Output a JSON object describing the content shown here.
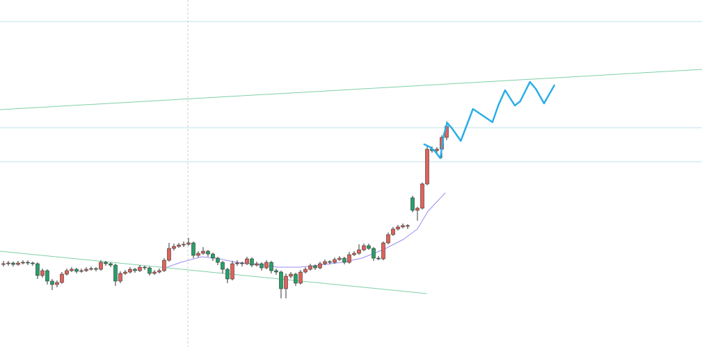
{
  "chart_data": {
    "type": "candlestick",
    "xlim": [
      -0.71,
      143.43
    ],
    "ylim": [
      0,
      500
    ],
    "up_color": "#e0625b",
    "down_color": "#26a069",
    "x": [
      0,
      1,
      2,
      3,
      4,
      5,
      6,
      7,
      8,
      9,
      10,
      11,
      12,
      13,
      14,
      15,
      16,
      17,
      18,
      19,
      20,
      21,
      22,
      23,
      24,
      25,
      26,
      27,
      28,
      29,
      30,
      31,
      32,
      33,
      34,
      35,
      36,
      37,
      38,
      39,
      40,
      41,
      42,
      43,
      44,
      45,
      46,
      47,
      48,
      49,
      50,
      51,
      52,
      53,
      54,
      55,
      56,
      57,
      58,
      59,
      60,
      61,
      62,
      63,
      64,
      65,
      66,
      67,
      68,
      69,
      70,
      71,
      72,
      73,
      74,
      75,
      76,
      77,
      78,
      79,
      80,
      81,
      82,
      83,
      84,
      85,
      86,
      87,
      88,
      89,
      90,
      91
    ],
    "open": [
      119,
      120,
      121,
      119,
      121,
      122,
      121,
      120,
      103,
      110,
      95,
      90,
      93,
      105,
      110,
      112,
      109,
      110,
      112,
      113,
      112,
      122,
      120,
      118,
      95,
      106,
      108,
      112,
      110,
      115,
      114,
      106,
      108,
      110,
      125,
      142,
      145,
      147,
      148,
      150,
      132,
      135,
      138,
      134,
      128,
      122,
      112,
      98,
      120,
      121,
      120,
      127,
      118,
      120,
      114,
      122,
      110,
      108,
      84,
      102,
      105,
      92,
      108,
      112,
      117,
      114,
      120,
      123,
      122,
      126,
      128,
      122,
      133,
      135,
      140,
      146,
      142,
      128,
      127,
      150,
      162,
      170,
      173,
      175,
      215,
      197,
      200,
      235,
      285,
      283,
      285,
      302
    ],
    "high": [
      124,
      124,
      123,
      124,
      125,
      125,
      123,
      122,
      113,
      112,
      98,
      96,
      108,
      113,
      115,
      114,
      113,
      115,
      116,
      115,
      125,
      124,
      122,
      120,
      109,
      111,
      115,
      114,
      118,
      117,
      116,
      111,
      113,
      128,
      150,
      149,
      150,
      152,
      157,
      152,
      138,
      144,
      140,
      136,
      130,
      124,
      114,
      124,
      125,
      123,
      130,
      129,
      123,
      122,
      125,
      124,
      113,
      110,
      106,
      108,
      107,
      111,
      115,
      120,
      119,
      123,
      126,
      125,
      129,
      131,
      130,
      137,
      138,
      148,
      149,
      149,
      144,
      131,
      152,
      165,
      173,
      176,
      178,
      177,
      218,
      202,
      237,
      290,
      289,
      288,
      305,
      325
    ],
    "low": [
      116,
      117,
      116,
      117,
      119,
      118,
      117,
      98,
      100,
      90,
      82,
      86,
      91,
      103,
      108,
      106,
      107,
      108,
      110,
      109,
      110,
      117,
      115,
      88,
      92,
      104,
      106,
      107,
      108,
      111,
      103,
      104,
      106,
      108,
      123,
      139,
      143,
      144,
      146,
      128,
      129,
      133,
      130,
      124,
      118,
      106,
      92,
      96,
      117,
      116,
      118,
      115,
      116,
      110,
      112,
      106,
      104,
      70,
      70,
      99,
      88,
      90,
      106,
      110,
      111,
      112,
      118,
      119,
      120,
      124,
      119,
      120,
      131,
      133,
      138,
      140,
      124,
      125,
      125,
      148,
      160,
      168,
      171,
      170,
      194,
      182,
      198,
      233,
      280,
      278,
      272,
      298
    ],
    "close": [
      120,
      121,
      119,
      121,
      122,
      121,
      120,
      103,
      110,
      95,
      90,
      93,
      105,
      110,
      112,
      109,
      110,
      112,
      113,
      112,
      122,
      120,
      118,
      95,
      106,
      108,
      112,
      110,
      115,
      114,
      106,
      108,
      110,
      125,
      142,
      145,
      147,
      148,
      150,
      132,
      135,
      138,
      134,
      128,
      122,
      112,
      98,
      120,
      121,
      120,
      127,
      118,
      120,
      114,
      122,
      110,
      108,
      84,
      102,
      105,
      92,
      108,
      112,
      117,
      114,
      120,
      123,
      122,
      126,
      128,
      122,
      133,
      135,
      140,
      146,
      142,
      128,
      127,
      150,
      162,
      170,
      173,
      175,
      175,
      197,
      200,
      235,
      285,
      283,
      285,
      302,
      318
    ],
    "hlines": [
      {
        "value": 469,
        "color": "#bfe3ea"
      },
      {
        "value": 316,
        "color": "#bfe3ea"
      },
      {
        "value": 267,
        "color": "#bfe3ea"
      }
    ],
    "vlines": [
      {
        "value": 37.86,
        "color": "#c8c8c8",
        "dashed": true
      }
    ],
    "overlays": [
      {
        "color": "#7fcfa8",
        "width": 1,
        "x": [
          -0.71,
          143.43
        ],
        "values": [
          342,
          400
        ]
      },
      {
        "color": "#7fcfa8",
        "width": 1,
        "x": [
          -0.71,
          86.86
        ],
        "values": [
          138,
          77
        ]
      },
      {
        "color": "#9a8cf0",
        "width": 1,
        "x": [
          33.6,
          36.4,
          40.7,
          43.6,
          47.9,
          53.6,
          56.4,
          60.7,
          65,
          69.3,
          73.6,
          77.9,
          82.1,
          85,
          87.1,
          90.7
        ],
        "values": [
          115,
          122,
          130,
          128,
          122,
          118,
          115,
          115,
          118,
          122,
          128,
          140,
          155,
          170,
          195,
          222
        ]
      },
      {
        "color": "#29aee8",
        "width": 2.5,
        "x": [
          86.4,
          87.6,
          88.6,
          89.7,
          90.4,
          91.1,
          92.1,
          93.9,
          96.4,
          100.4,
          101.6,
          103,
          105,
          106.1,
          108.1,
          109.3,
          111,
          113.1
        ],
        "values": [
          292,
          288,
          282,
          272,
          305,
          323,
          315,
          297,
          343,
          324,
          348,
          370,
          348,
          354,
          382,
          372,
          351,
          377
        ]
      }
    ]
  }
}
